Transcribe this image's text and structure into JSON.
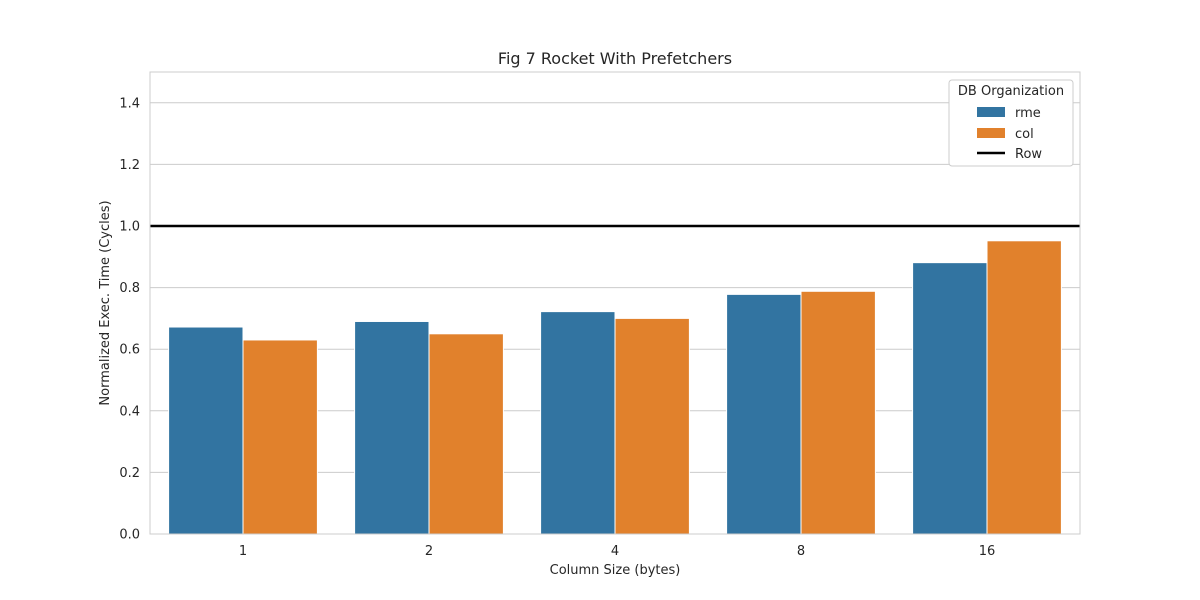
{
  "chart_data": {
    "type": "bar",
    "title": "Fig 7 Rocket With Prefetchers",
    "xlabel": "Column Size (bytes)",
    "ylabel": "Normalized Exec. Time (Cycles)",
    "categories": [
      "1",
      "2",
      "4",
      "8",
      "16"
    ],
    "series": [
      {
        "name": "rme",
        "color": "#3274a1",
        "values": [
          0.672,
          0.69,
          0.722,
          0.778,
          0.881
        ]
      },
      {
        "name": "col",
        "color": "#e1812c",
        "values": [
          0.63,
          0.65,
          0.7,
          0.788,
          0.952
        ]
      }
    ],
    "reference_line": {
      "name": "Row",
      "value": 1.0,
      "color": "#000000"
    },
    "ylim": [
      0,
      1.5
    ],
    "yticks": [
      "0.0",
      "0.2",
      "0.4",
      "0.6",
      "0.8",
      "1.0",
      "1.2",
      "1.4"
    ],
    "grid": true,
    "legend": {
      "title": "DB Organization",
      "position": "top-right"
    }
  }
}
